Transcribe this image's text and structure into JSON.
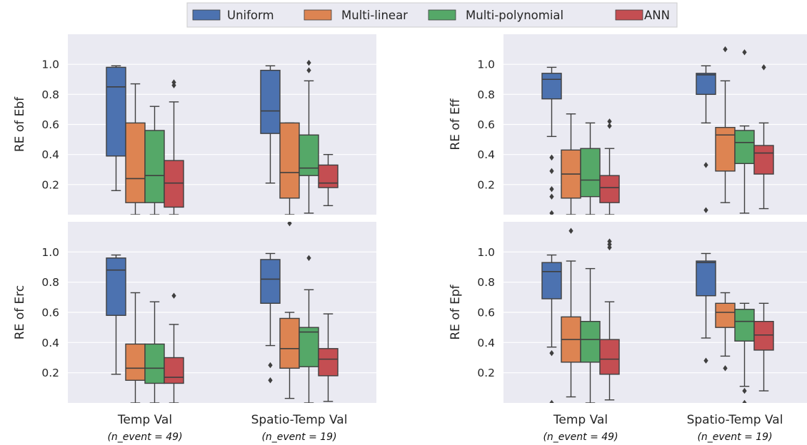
{
  "chart_data": {
    "type": "box",
    "legend": {
      "placement": "top-center",
      "items": [
        "Uniform",
        "Multi-linear",
        "Multi-polynomial",
        "ANN"
      ]
    },
    "colors": {
      "Uniform": "#4c72b0",
      "Multi-linear": "#dd8452",
      "Multi-polynomial": "#55a868",
      "ANN": "#c44e52",
      "background": "#eaeaf2",
      "grid": "#ffffff",
      "line": "#3f3f3f"
    },
    "categories": [
      "Temp Val",
      "Spatio-Temp Val"
    ],
    "category_notes": [
      "(n_event = 49)",
      "(n_event = 19)"
    ],
    "yticks": [
      "0.2",
      "0.4",
      "0.6",
      "0.8",
      "1.0"
    ],
    "ylim": [
      0.0,
      1.2
    ],
    "grid": true,
    "panels": [
      {
        "ylabel": "RE of Ebf",
        "groups": [
          [
            {
              "whislo": 0.16,
              "q1": 0.39,
              "med": 0.85,
              "q3": 0.98,
              "whishi": 0.99,
              "fliers": []
            },
            {
              "whislo": 0.0,
              "q1": 0.08,
              "med": 0.24,
              "q3": 0.61,
              "whishi": 0.87,
              "fliers": []
            },
            {
              "whislo": 0.0,
              "q1": 0.08,
              "med": 0.26,
              "q3": 0.56,
              "whishi": 0.72,
              "fliers": []
            },
            {
              "whislo": 0.0,
              "q1": 0.05,
              "med": 0.21,
              "q3": 0.36,
              "whishi": 0.75,
              "fliers": [
                0.86,
                0.88
              ]
            }
          ],
          [
            {
              "whislo": 0.21,
              "q1": 0.54,
              "med": 0.69,
              "q3": 0.96,
              "whishi": 0.99,
              "fliers": []
            },
            {
              "whislo": 0.0,
              "q1": 0.11,
              "med": 0.28,
              "q3": 0.61,
              "whishi": 0.61,
              "fliers": []
            },
            {
              "whislo": 0.01,
              "q1": 0.26,
              "med": 0.31,
              "q3": 0.53,
              "whishi": 0.89,
              "fliers": [
                0.96,
                1.01
              ]
            },
            {
              "whislo": 0.06,
              "q1": 0.18,
              "med": 0.21,
              "q3": 0.33,
              "whishi": 0.4,
              "fliers": []
            }
          ]
        ]
      },
      {
        "ylabel": "RE of Eff",
        "groups": [
          [
            {
              "whislo": 0.52,
              "q1": 0.77,
              "med": 0.9,
              "q3": 0.94,
              "whishi": 0.98,
              "fliers": [
                0.01,
                0.12,
                0.17,
                0.29,
                0.38
              ]
            },
            {
              "whislo": 0.0,
              "q1": 0.11,
              "med": 0.27,
              "q3": 0.43,
              "whishi": 0.67,
              "fliers": []
            },
            {
              "whislo": 0.0,
              "q1": 0.12,
              "med": 0.23,
              "q3": 0.44,
              "whishi": 0.61,
              "fliers": []
            },
            {
              "whislo": 0.0,
              "q1": 0.08,
              "med": 0.18,
              "q3": 0.26,
              "whishi": 0.44,
              "fliers": [
                0.59,
                0.62
              ]
            }
          ],
          [
            {
              "whislo": 0.61,
              "q1": 0.8,
              "med": 0.93,
              "q3": 0.94,
              "whishi": 0.99,
              "fliers": [
                0.03,
                0.33
              ]
            },
            {
              "whislo": 0.08,
              "q1": 0.29,
              "med": 0.53,
              "q3": 0.58,
              "whishi": 0.89,
              "fliers": [
                1.1
              ]
            },
            {
              "whislo": 0.01,
              "q1": 0.34,
              "med": 0.48,
              "q3": 0.56,
              "whishi": 0.59,
              "fliers": [
                1.08
              ]
            },
            {
              "whislo": 0.04,
              "q1": 0.27,
              "med": 0.41,
              "q3": 0.46,
              "whishi": 0.61,
              "fliers": [
                0.98
              ]
            }
          ]
        ]
      },
      {
        "ylabel": "RE of Erc",
        "groups": [
          [
            {
              "whislo": 0.19,
              "q1": 0.58,
              "med": 0.88,
              "q3": 0.96,
              "whishi": 0.98,
              "fliers": []
            },
            {
              "whislo": 0.0,
              "q1": 0.15,
              "med": 0.23,
              "q3": 0.39,
              "whishi": 0.73,
              "fliers": []
            },
            {
              "whislo": 0.0,
              "q1": 0.13,
              "med": 0.23,
              "q3": 0.39,
              "whishi": 0.67,
              "fliers": []
            },
            {
              "whislo": 0.0,
              "q1": 0.13,
              "med": 0.17,
              "q3": 0.3,
              "whishi": 0.52,
              "fliers": [
                0.71
              ]
            }
          ],
          [
            {
              "whislo": 0.38,
              "q1": 0.66,
              "med": 0.82,
              "q3": 0.95,
              "whishi": 0.99,
              "fliers": [
                0.15,
                0.25
              ]
            },
            {
              "whislo": 0.03,
              "q1": 0.23,
              "med": 0.36,
              "q3": 0.56,
              "whishi": 0.6,
              "fliers": [
                1.19
              ]
            },
            {
              "whislo": 0.0,
              "q1": 0.24,
              "med": 0.47,
              "q3": 0.5,
              "whishi": 0.75,
              "fliers": [
                0.96
              ]
            },
            {
              "whislo": 0.01,
              "q1": 0.18,
              "med": 0.29,
              "q3": 0.36,
              "whishi": 0.59,
              "fliers": []
            }
          ]
        ]
      },
      {
        "ylabel": "RE of Epf",
        "groups": [
          [
            {
              "whislo": 0.37,
              "q1": 0.69,
              "med": 0.87,
              "q3": 0.93,
              "whishi": 0.98,
              "fliers": [
                0.0,
                0.33
              ]
            },
            {
              "whislo": 0.04,
              "q1": 0.27,
              "med": 0.42,
              "q3": 0.57,
              "whishi": 0.94,
              "fliers": [
                1.14
              ]
            },
            {
              "whislo": 0.0,
              "q1": 0.27,
              "med": 0.42,
              "q3": 0.54,
              "whishi": 0.89,
              "fliers": []
            },
            {
              "whislo": 0.02,
              "q1": 0.19,
              "med": 0.29,
              "q3": 0.42,
              "whishi": 0.67,
              "fliers": [
                1.03,
                1.05,
                1.07
              ]
            }
          ],
          [
            {
              "whislo": 0.43,
              "q1": 0.71,
              "med": 0.93,
              "q3": 0.94,
              "whishi": 0.99,
              "fliers": [
                0.28
              ]
            },
            {
              "whislo": 0.31,
              "q1": 0.5,
              "med": 0.6,
              "q3": 0.66,
              "whishi": 0.73,
              "fliers": [
                0.23
              ]
            },
            {
              "whislo": 0.11,
              "q1": 0.41,
              "med": 0.54,
              "q3": 0.62,
              "whishi": 0.66,
              "fliers": [
                0.0,
                0.08
              ]
            },
            {
              "whislo": 0.08,
              "q1": 0.35,
              "med": 0.45,
              "q3": 0.54,
              "whishi": 0.66,
              "fliers": []
            }
          ]
        ]
      }
    ]
  }
}
